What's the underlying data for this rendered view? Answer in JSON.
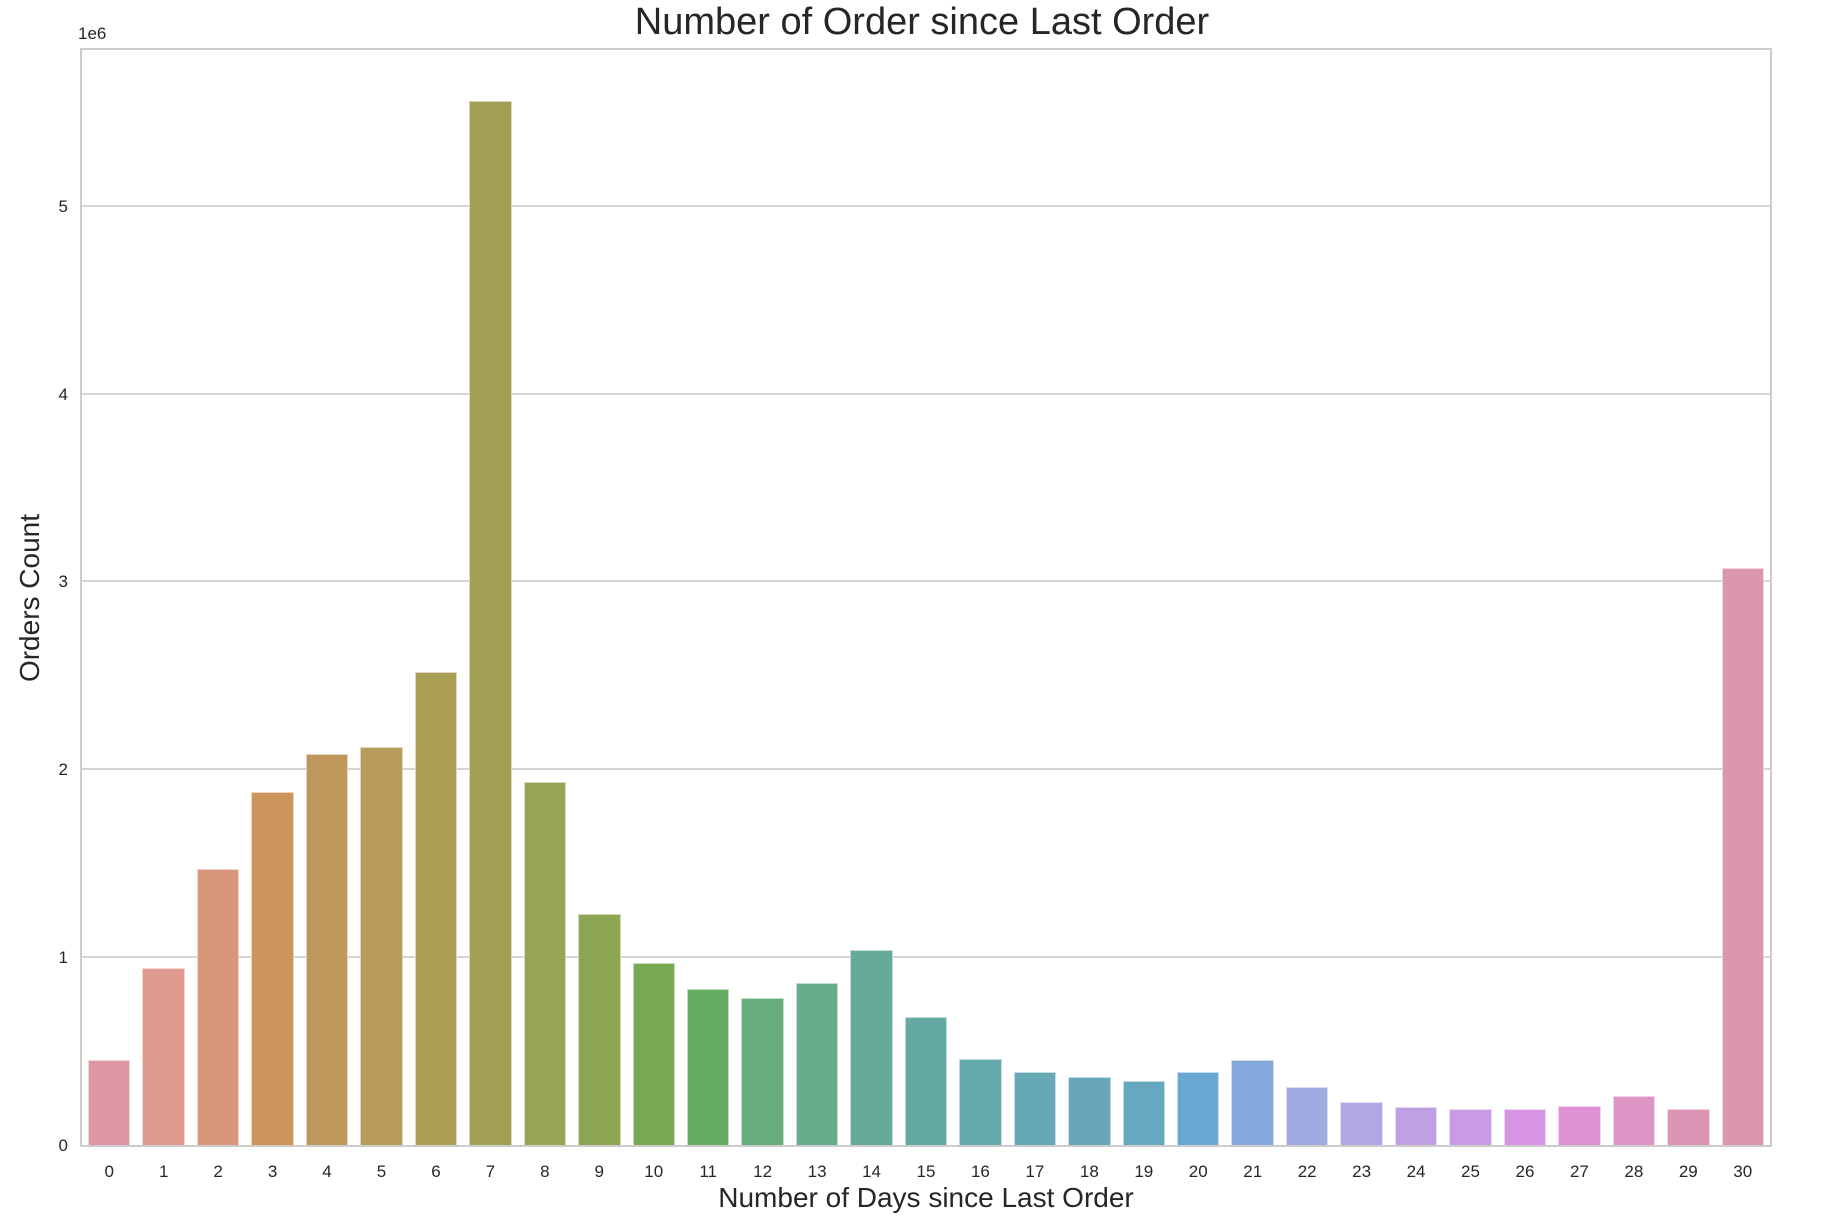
{
  "chart_data": {
    "type": "bar",
    "title": "Number of Order since Last Order",
    "xlabel": "Number of Days since Last Order",
    "ylabel": "Orders Count",
    "y_offset_label": "1e6",
    "ylim": [
      0,
      5.84
    ],
    "yticks": [
      0,
      1,
      2,
      3,
      4,
      5
    ],
    "grid": "horizontal",
    "legend": "none",
    "categories": [
      "0",
      "1",
      "2",
      "3",
      "4",
      "5",
      "6",
      "7",
      "8",
      "9",
      "10",
      "11",
      "12",
      "13",
      "14",
      "15",
      "16",
      "17",
      "18",
      "19",
      "20",
      "21",
      "22",
      "23",
      "24",
      "25",
      "26",
      "27",
      "28",
      "29",
      "30"
    ],
    "values_millions": [
      0.45,
      0.94,
      1.47,
      1.88,
      2.08,
      2.12,
      2.52,
      5.56,
      1.93,
      1.23,
      0.97,
      0.83,
      0.78,
      0.86,
      1.04,
      0.68,
      0.46,
      0.39,
      0.36,
      0.34,
      0.39,
      0.45,
      0.31,
      0.23,
      0.2,
      0.19,
      0.19,
      0.21,
      0.26,
      0.19,
      3.07
    ],
    "colors": [
      "#dd98a4",
      "#df998f",
      "#d9967a",
      "#cd955c",
      "#c0975a",
      "#b69b59",
      "#ab9f55",
      "#a19f54",
      "#97a453",
      "#8ca653",
      "#78aa55",
      "#66ad62",
      "#67ad7c",
      "#66ac8d",
      "#65aa98",
      "#65aaa2",
      "#65a9ac",
      "#66a8b3",
      "#67a6bb",
      "#67a8c1",
      "#68a8d3",
      "#86a9dd",
      "#9faae0",
      "#b1a7e2",
      "#c0a0e3",
      "#c99be4",
      "#d794e2",
      "#db91d3",
      "#dc95c4",
      "#dc95b4",
      "#dc97b0"
    ]
  }
}
